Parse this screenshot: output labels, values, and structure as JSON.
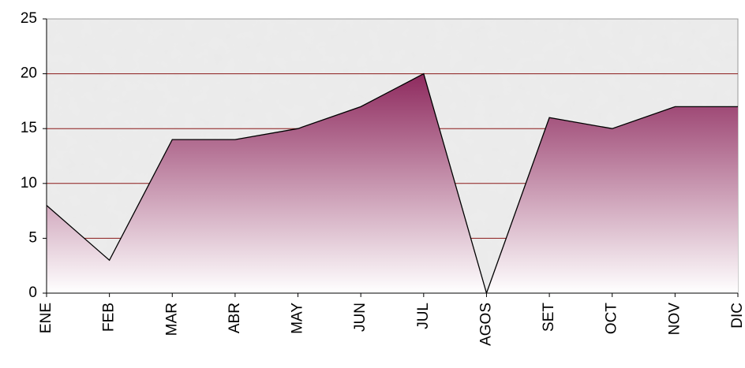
{
  "chart_data": {
    "type": "area",
    "categories": [
      "ENE",
      "FEB",
      "MAR",
      "ABR",
      "MAY",
      "JUN",
      "JUL",
      "AGOS",
      "SET",
      "OCT",
      "NOV",
      "DIC"
    ],
    "values": [
      8,
      3,
      14,
      14,
      15,
      17,
      20,
      0,
      16,
      15,
      17,
      17
    ],
    "color": "#8e2a5e",
    "ylim": [
      0,
      25
    ],
    "yticks": [
      0,
      5,
      10,
      15,
      20,
      25
    ],
    "grid": true,
    "grid_color": "#8b1a1a"
  }
}
